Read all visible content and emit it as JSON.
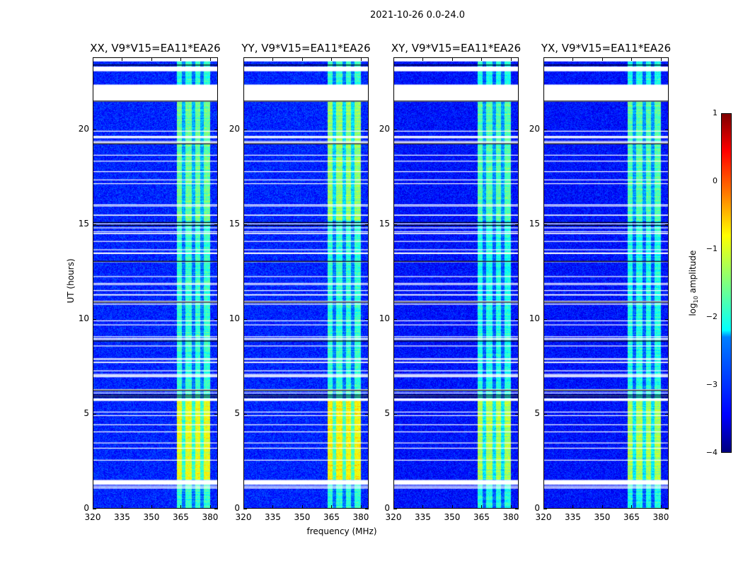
{
  "suptitle": "2021-10-26 0.0-24.0",
  "chart_data": {
    "type": "heatmap",
    "xlabel": "frequency (MHz)",
    "ylabel": "UT (hours)",
    "xlim": [
      320,
      384
    ],
    "ylim": [
      0,
      23.8
    ],
    "xticks": [
      "320",
      "335",
      "350",
      "365",
      "380"
    ],
    "xtick_values": [
      320,
      335,
      350,
      365,
      380
    ],
    "yticks": [
      "0",
      "5",
      "10",
      "15",
      "20"
    ],
    "ytick_values": [
      0,
      5,
      10,
      15,
      20
    ],
    "colorbar": {
      "label_main": "log",
      "label_sub": "10",
      "label_rest": " amplitude",
      "range": [
        -4,
        1
      ],
      "ticks": [
        "1",
        "0",
        "−1",
        "−2",
        "−3",
        "−4"
      ],
      "tick_values": [
        1,
        0,
        -1,
        -2,
        -3,
        -4
      ],
      "colormap": "jet"
    },
    "rfi_band_mhz": [
      363,
      380
    ],
    "flagged_hours": [
      [
        23.1,
        23.35
      ],
      [
        21.5,
        22.4
      ],
      [
        5.72,
        5.85
      ],
      [
        1.3,
        1.55
      ]
    ],
    "panels": [
      {
        "title": "XX, V9*V15=EA11*EA26",
        "background_log": -3.2,
        "band_log_day": -1.6,
        "band_log_night": -1.9,
        "band_log_early": -1.0
      },
      {
        "title": "YY, V9*V15=EA11*EA26",
        "background_log": -3.2,
        "band_log_day": -1.4,
        "band_log_night": -1.9,
        "band_log_early": -0.9
      },
      {
        "title": "XY, V9*V15=EA11*EA26",
        "background_log": -3.3,
        "band_log_day": -1.7,
        "band_log_night": -2.0,
        "band_log_early": -1.3
      },
      {
        "title": "YX, V9*V15=EA11*EA26",
        "background_log": -3.3,
        "band_log_day": -1.7,
        "band_log_night": -2.0,
        "band_log_early": -1.3
      }
    ]
  }
}
